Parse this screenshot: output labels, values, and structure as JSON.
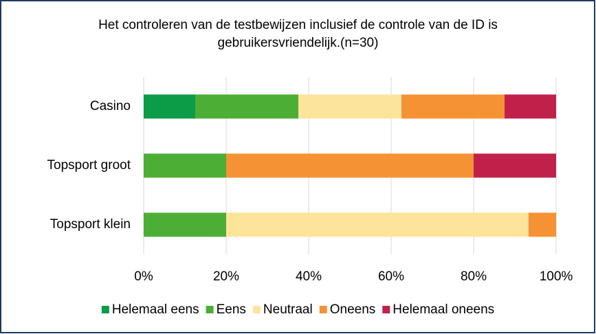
{
  "chart_data": {
    "type": "stacked-bar-horizontal",
    "title": "Het controleren van de testbewijzen inclusief de controle van de ID is gebruikersvriendelijk.(n=30)",
    "categories": [
      "Casino",
      "Topsport groot",
      "Topsport klein"
    ],
    "series": [
      {
        "name": "Helemaal eens",
        "color": "#0c9b47",
        "values": [
          12.5,
          0,
          0
        ]
      },
      {
        "name": "Eens",
        "color": "#4cae35",
        "values": [
          25,
          20,
          20
        ]
      },
      {
        "name": "Neutraal",
        "color": "#fde49b",
        "values": [
          25,
          0,
          73.3
        ]
      },
      {
        "name": "Oneens",
        "color": "#f59234",
        "values": [
          25,
          60,
          6.7
        ]
      },
      {
        "name": "Helemaal oneens",
        "color": "#c0214b",
        "values": [
          12.5,
          20,
          0
        ]
      }
    ],
    "xlim": [
      0,
      100
    ],
    "xticks": [
      {
        "value": 0,
        "label": "0%"
      },
      {
        "value": 20,
        "label": "20%"
      },
      {
        "value": 40,
        "label": "40%"
      },
      {
        "value": 60,
        "label": "60%"
      },
      {
        "value": 80,
        "label": "80%"
      },
      {
        "value": 100,
        "label": "100%"
      }
    ],
    "grid": true,
    "legend": "bottom"
  }
}
